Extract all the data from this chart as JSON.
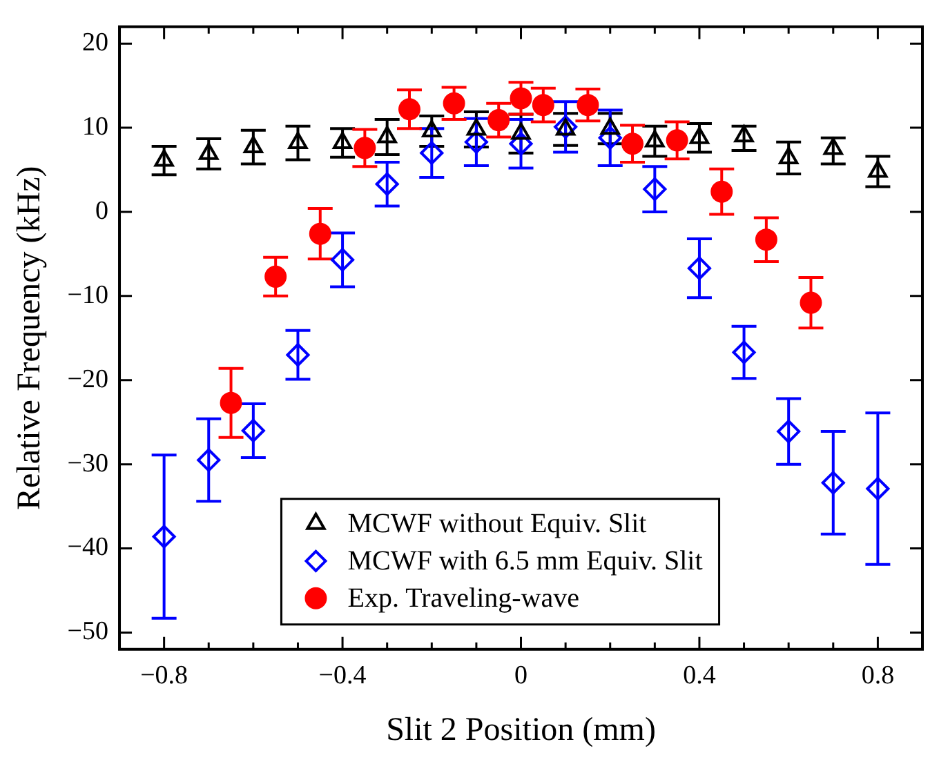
{
  "chart_data": {
    "type": "scatter",
    "xlabel": "Slit 2 Position (mm)",
    "ylabel": "Relative Frequency (kHz)",
    "xlim": [
      -0.9,
      0.9
    ],
    "ylim": [
      -52,
      22
    ],
    "xticks": [
      {
        "value": -0.8,
        "label": "−0.8"
      },
      {
        "value": -0.7,
        "label": null
      },
      {
        "value": -0.6,
        "label": null
      },
      {
        "value": -0.5,
        "label": null
      },
      {
        "value": -0.4,
        "label": "−0.4"
      },
      {
        "value": -0.3,
        "label": null
      },
      {
        "value": -0.2,
        "label": null
      },
      {
        "value": -0.1,
        "label": null
      },
      0,
      {
        "value": 0.1,
        "label": null
      },
      {
        "value": 0.2,
        "label": null
      },
      {
        "value": 0.3,
        "label": null
      },
      0.4,
      {
        "value": 0.5,
        "label": null
      },
      {
        "value": 0.6,
        "label": null
      },
      {
        "value": 0.7,
        "label": null
      },
      0.8
    ],
    "yticks": [
      {
        "value": -50,
        "label": "−50"
      },
      {
        "value": -40,
        "label": "−40"
      },
      {
        "value": -30,
        "label": "−30"
      },
      {
        "value": -20,
        "label": "−20"
      },
      {
        "value": -10,
        "label": "−10"
      },
      0,
      10,
      20
    ],
    "legend": "bottom",
    "grid": false,
    "series": [
      {
        "name": "MCWF without Equiv. Slit",
        "color": "#000000",
        "marker": "triangle",
        "x": [
          -0.8,
          -0.7,
          -0.6,
          -0.5,
          -0.4,
          -0.3,
          -0.2,
          -0.1,
          0,
          0.1,
          0.2,
          0.3,
          0.4,
          0.5,
          0.6,
          0.7,
          0.8
        ],
        "values": [
          6.1,
          6.9,
          7.7,
          8.2,
          8.2,
          8.9,
          9.6,
          9.8,
          9.3,
          9.8,
          9.9,
          8.4,
          8.8,
          9,
          6.4,
          7.5,
          4.8
        ],
        "errors": [
          1.7,
          1.8,
          2,
          2,
          1.7,
          2.1,
          1.8,
          2.1,
          2.3,
          1.9,
          1.8,
          1.8,
          1.7,
          [
            7.3,
            10.2
          ],
          1.9,
          [
            5.7,
            8.8
          ],
          1.8
        ]
      },
      {
        "name": "MCWF with 6.5 mm Equiv. Slit",
        "color": "#0000ff",
        "marker": "diamond",
        "x": [
          -0.8,
          -0.7,
          -0.6,
          -0.5,
          -0.4,
          -0.3,
          -0.2,
          -0.1,
          0,
          0.1,
          0.2,
          0.3,
          0.4,
          0.5,
          0.6,
          0.7,
          0.8
        ],
        "values": [
          -38.6,
          -29.5,
          -26,
          -17,
          -5.7,
          3.3,
          7,
          8.3,
          8.1,
          10.1,
          8.8,
          2.7,
          -6.7,
          -16.7,
          -26.1,
          -32.2,
          -32.9
        ],
        "errors": [
          9.7,
          4.9,
          3.2,
          2.9,
          3.2,
          2.6,
          2.9,
          2.8,
          2.9,
          3,
          3.3,
          2.7,
          3.5,
          3.1,
          3.9,
          6.1,
          9
        ]
      },
      {
        "name": "Exp. Traveling-wave",
        "color": "#ff0000",
        "marker": "circle",
        "x": [
          -0.65,
          -0.55,
          -0.45,
          -0.35,
          -0.25,
          -0.15,
          -0.05,
          0,
          0.05,
          0.15,
          0.25,
          0.35,
          0.45,
          0.55,
          0.65
        ],
        "values": [
          -22.7,
          -7.7,
          -2.6,
          7.6,
          12.2,
          12.9,
          10.9,
          13.5,
          12.7,
          12.7,
          8.1,
          8.5,
          2.4,
          -3.3,
          -10.8
        ],
        "errors": [
          4.1,
          2.3,
          3,
          2.2,
          2.3,
          1.9,
          2,
          1.9,
          2,
          1.9,
          2.2,
          2.2,
          2.7,
          2.6,
          3
        ]
      }
    ]
  }
}
